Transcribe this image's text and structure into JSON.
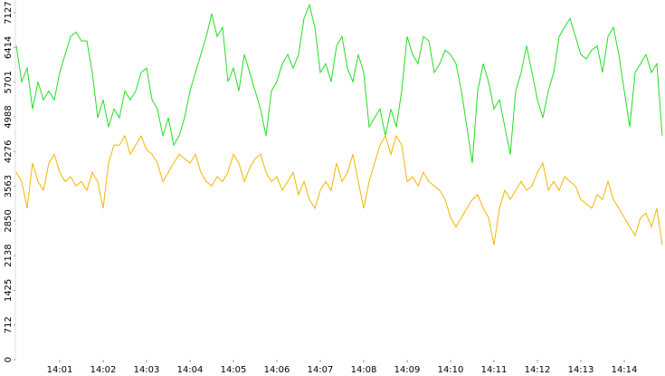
{
  "chart_data": {
    "type": "line",
    "categories": [
      null,
      null,
      null,
      null,
      null,
      null,
      null,
      null,
      "14:01",
      null,
      null,
      null,
      null,
      null,
      null,
      null,
      "14:02",
      null,
      null,
      null,
      null,
      null,
      null,
      null,
      "14:03",
      null,
      null,
      null,
      null,
      null,
      null,
      null,
      "14:04",
      null,
      null,
      null,
      null,
      null,
      null,
      null,
      "14:05",
      null,
      null,
      null,
      null,
      null,
      null,
      null,
      "14:06",
      null,
      null,
      null,
      null,
      null,
      null,
      null,
      "14:07",
      null,
      null,
      null,
      null,
      null,
      null,
      null,
      "14:08",
      null,
      null,
      null,
      null,
      null,
      null,
      null,
      "14:09",
      null,
      null,
      null,
      null,
      null,
      null,
      null,
      "14:10",
      null,
      null,
      null,
      null,
      null,
      null,
      null,
      "14:11",
      null,
      null,
      null,
      null,
      null,
      null,
      null,
      "14:12",
      null,
      null,
      null,
      null,
      null,
      null,
      null,
      "14:13",
      null,
      null,
      null,
      null,
      null,
      null,
      null,
      "14:14",
      null,
      null,
      null,
      null,
      null,
      null,
      null
    ],
    "series": [
      {
        "color": "#22dd22",
        "values": [
          6450,
          5710,
          5990,
          5150,
          5710,
          5340,
          5520,
          5340,
          5900,
          6270,
          6640,
          6730,
          6550,
          6550,
          5900,
          4970,
          5340,
          4780,
          5150,
          4970,
          5520,
          5340,
          5520,
          5900,
          5990,
          5340,
          5150,
          4600,
          4970,
          4410,
          4600,
          4970,
          5520,
          5900,
          6270,
          6640,
          7110,
          6640,
          6830,
          5710,
          5990,
          5520,
          6270,
          5900,
          5520,
          5150,
          4600,
          5520,
          5710,
          6080,
          6270,
          5990,
          6270,
          7010,
          7290,
          6830,
          5900,
          6080,
          5710,
          6450,
          6640,
          5990,
          5710,
          6270,
          5900,
          4780,
          4970,
          5150,
          4600,
          5150,
          4780,
          5520,
          6640,
          6270,
          6080,
          6640,
          6550,
          5900,
          6080,
          6360,
          6270,
          6080,
          5520,
          4780,
          4040,
          5520,
          6080,
          5710,
          5150,
          5340,
          4780,
          4220,
          5520,
          5900,
          6450,
          5900,
          5340,
          4970,
          5520,
          5900,
          6640,
          6830,
          7010,
          6640,
          6270,
          6180,
          6360,
          6450,
          5900,
          6640,
          6830,
          6270,
          5520,
          4780,
          5900,
          6080,
          6270,
          5900,
          6080,
          4600
        ]
      },
      {
        "color": "#f2b600",
        "values": [
          3850,
          3660,
          3110,
          4040,
          3660,
          3480,
          4040,
          4220,
          3850,
          3660,
          3760,
          3570,
          3660,
          3480,
          3850,
          3660,
          3110,
          4040,
          4410,
          4410,
          4600,
          4220,
          4410,
          4600,
          4310,
          4220,
          4040,
          3660,
          3850,
          4040,
          4220,
          4130,
          4040,
          4220,
          3850,
          3660,
          3570,
          3760,
          3660,
          3850,
          4220,
          4040,
          3660,
          3940,
          4130,
          4220,
          3850,
          3660,
          3760,
          3480,
          3660,
          3850,
          3390,
          3660,
          3290,
          3110,
          3480,
          3660,
          3480,
          4040,
          3660,
          3850,
          4220,
          3660,
          3110,
          3660,
          4040,
          4410,
          4600,
          4220,
          4600,
          4410,
          3660,
          3760,
          3570,
          3850,
          3660,
          3570,
          3480,
          3290,
          2920,
          2730,
          2920,
          3110,
          3290,
          3390,
          3110,
          2920,
          2360,
          3110,
          3480,
          3290,
          3480,
          3660,
          3480,
          3570,
          3850,
          4040,
          3480,
          3660,
          3480,
          3760,
          3660,
          3570,
          3290,
          3200,
          3110,
          3390,
          3290,
          3660,
          3290,
          3110,
          2920,
          2730,
          2550,
          2920,
          3010,
          2730,
          3110,
          2360
        ]
      }
    ],
    "ylim": [
      0,
      7390
    ],
    "yticks": [
      0,
      712,
      1425,
      2138,
      2850,
      3563,
      4276,
      4988,
      5701,
      6414,
      7127
    ],
    "grid": false
  }
}
